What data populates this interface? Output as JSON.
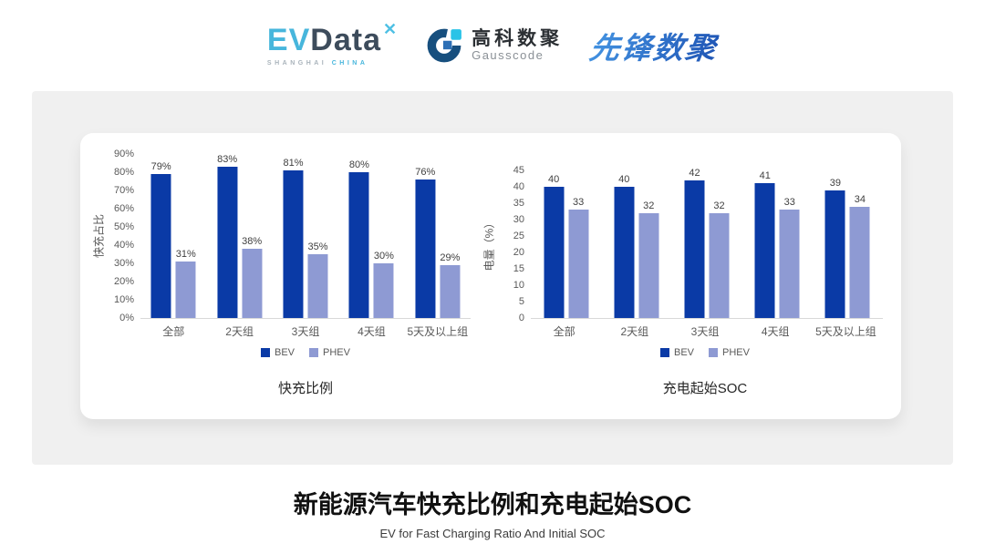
{
  "header": {
    "evdata": {
      "ev": "EV",
      "data": "Data",
      "star": "✕",
      "sub_left": "SHANGHAI",
      "sub_right": "CHINA"
    },
    "gausscode": {
      "cn": "高科数聚",
      "en": "Gausscode"
    },
    "pioneer": "先锋数聚"
  },
  "colors": {
    "bev": "#0a3aa6",
    "phev": "#8e9ad3",
    "baseline": "#d9d9d9",
    "panel_background": "#f0f0f0",
    "evdata_cyan": "#47b6dc",
    "evdata_dark": "#3d4c5c",
    "gauss_navy": "#174f7e",
    "gauss_cyan": "#29c3e7",
    "gauss_blue": "#2d6fb5"
  },
  "chart_data": [
    {
      "type": "bar",
      "title": "快充比例",
      "xlabel": "",
      "ylabel": "快充占比",
      "categories": [
        "全部",
        "2天组",
        "3天组",
        "4天组",
        "5天及以上组"
      ],
      "series": [
        {
          "name": "BEV",
          "values": [
            79,
            83,
            81,
            80,
            76
          ],
          "labels": [
            "79%",
            "83%",
            "81%",
            "80%",
            "76%"
          ],
          "color": "#0a3aa6"
        },
        {
          "name": "PHEV",
          "values": [
            31,
            38,
            35,
            30,
            29
          ],
          "labels": [
            "31%",
            "38%",
            "35%",
            "30%",
            "29%"
          ],
          "color": "#8e9ad3"
        }
      ],
      "ylim": [
        0,
        90
      ],
      "yticks": [
        "90%",
        "80%",
        "70%",
        "60%",
        "50%",
        "40%",
        "30%",
        "20%",
        "10%",
        "0%"
      ],
      "grid": false,
      "legend_position": "bottom"
    },
    {
      "type": "bar",
      "title": "充电起始SOC",
      "xlabel": "",
      "ylabel": "电量（%）",
      "categories": [
        "全部",
        "2天组",
        "3天组",
        "4天组",
        "5天及以上组"
      ],
      "series": [
        {
          "name": "BEV",
          "values": [
            40,
            40,
            42,
            41,
            39
          ],
          "labels": [
            "40",
            "40",
            "42",
            "41",
            "39"
          ],
          "color": "#0a3aa6"
        },
        {
          "name": "PHEV",
          "values": [
            33,
            32,
            32,
            33,
            34
          ],
          "labels": [
            "33",
            "32",
            "32",
            "33",
            "34"
          ],
          "color": "#8e9ad3"
        }
      ],
      "ylim": [
        0,
        45
      ],
      "yticks": [
        "45",
        "40",
        "35",
        "30",
        "25",
        "20",
        "15",
        "10",
        "5",
        "0"
      ],
      "grid": false,
      "legend_position": "bottom"
    }
  ],
  "footer": {
    "title": "新能源汽车快充比例和充电起始SOC",
    "subtitle": "EV for Fast Charging Ratio And Initial SOC"
  }
}
